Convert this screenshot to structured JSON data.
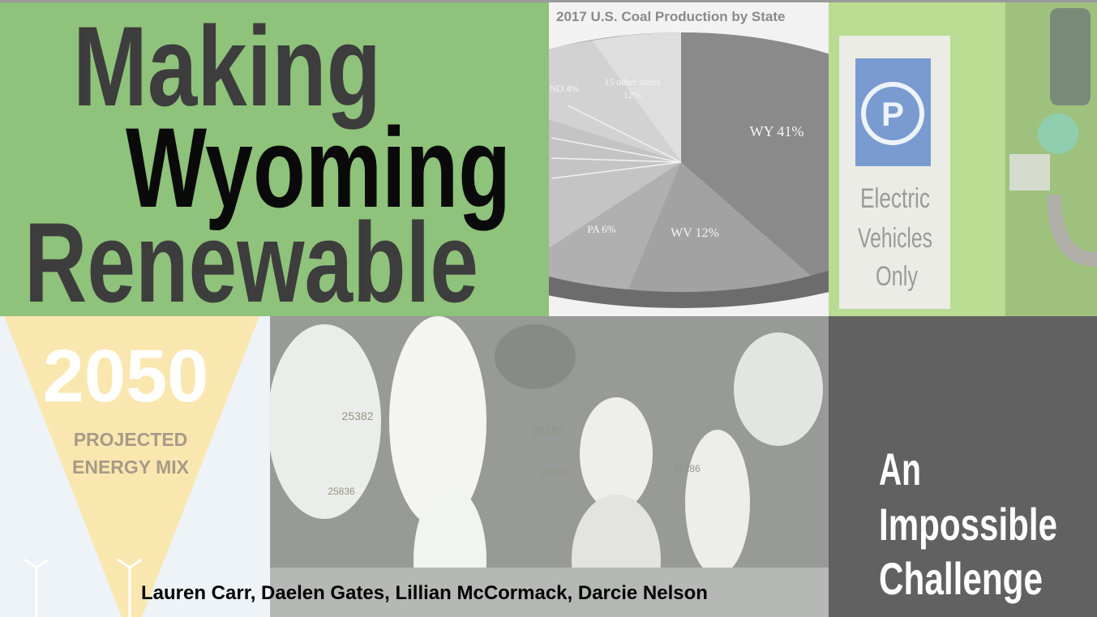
{
  "title": {
    "lines": [
      "Making",
      "Wyoming",
      "Renewable"
    ]
  },
  "subtitle": {
    "lines": [
      "An",
      "Impossible",
      "Challenge"
    ]
  },
  "authors": "Lauren Carr, Daelen Gates, Lillian McCormack, Darcie Nelson",
  "pie_image": {
    "title": "2017 U.S. Coal Production by State",
    "labels": [
      "WY 41%",
      "WV 12%",
      "PA 6%",
      "ND 4%",
      "15 other states",
      "12%"
    ]
  },
  "sign_image": {
    "lines": [
      "Electric",
      "Vehicles",
      "Only"
    ]
  },
  "poster_image": {
    "year": "2050",
    "lines": [
      "PROJECTED",
      "ENERGY MIX"
    ]
  },
  "cow_image": {
    "tags": [
      "25382",
      "25382",
      "25286",
      "25836",
      "25286"
    ]
  }
}
